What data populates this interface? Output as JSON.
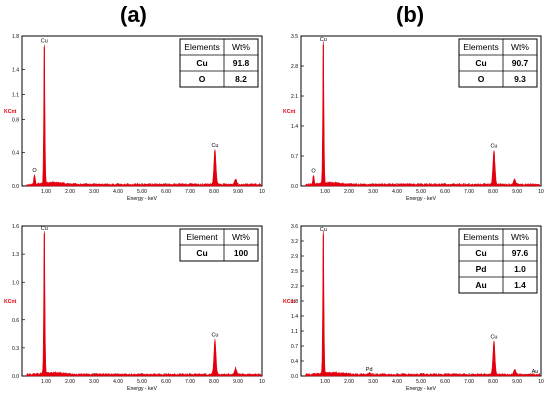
{
  "panel_letters": [
    "(a)",
    "(b)"
  ],
  "chart_data": [
    {
      "type": "line",
      "xlabel": "Energy - keV",
      "ylabel": "KCnt",
      "xlim": [
        0,
        10
      ],
      "ylim": [
        0,
        1.8
      ],
      "xticks": [
        "1.00",
        "2.00",
        "3.00",
        "4.00",
        "5.00",
        "6.00",
        "7.00",
        "8.00",
        "9.00",
        "10"
      ],
      "yticks": [
        "0.0",
        "0.4",
        "0.8",
        "1.1",
        "1.4",
        "1.8"
      ],
      "ytick_values": [
        0.0,
        0.4,
        0.8,
        1.1,
        1.4,
        1.8
      ],
      "peaks": [
        {
          "x": 0.52,
          "y": 0.12,
          "w": 0.04
        },
        {
          "x": 0.93,
          "y": 1.67,
          "w": 0.035
        },
        {
          "x": 8.04,
          "y": 0.42,
          "w": 0.06
        },
        {
          "x": 8.9,
          "y": 0.07,
          "w": 0.06
        }
      ],
      "annotations": [
        {
          "text": "Cu",
          "x": 0.93,
          "y": 1.72
        },
        {
          "text": "O",
          "x": 0.52,
          "y": 0.17
        },
        {
          "text": "Cu",
          "x": 8.04,
          "y": 0.47
        }
      ],
      "table": {
        "headers": [
          "Elements",
          "Wt%"
        ],
        "rows": [
          [
            "Cu",
            "91.8"
          ],
          [
            "O",
            "8.2"
          ]
        ]
      }
    },
    {
      "type": "line",
      "xlabel": "Energy - keV",
      "ylabel": "KCnt",
      "xlim": [
        0,
        10
      ],
      "ylim": [
        0,
        3.5
      ],
      "xticks": [
        "1.00",
        "2.00",
        "3.00",
        "4.00",
        "5.00",
        "6.00",
        "7.00",
        "8.00",
        "9.00",
        "10"
      ],
      "yticks": [
        "0.0",
        "0.7",
        "1.4",
        "2.1",
        "2.8",
        "3.5"
      ],
      "ytick_values": [
        0.0,
        0.7,
        1.4,
        2.1,
        2.8,
        3.5
      ],
      "peaks": [
        {
          "x": 0.52,
          "y": 0.22,
          "w": 0.04
        },
        {
          "x": 0.93,
          "y": 3.3,
          "w": 0.035
        },
        {
          "x": 8.04,
          "y": 0.8,
          "w": 0.06
        },
        {
          "x": 8.9,
          "y": 0.13,
          "w": 0.06
        }
      ],
      "annotations": [
        {
          "text": "Cu",
          "x": 0.93,
          "y": 3.38
        },
        {
          "text": "O",
          "x": 0.52,
          "y": 0.32
        },
        {
          "text": "Cu",
          "x": 8.04,
          "y": 0.9
        }
      ],
      "table": {
        "headers": [
          "Elements",
          "Wt%"
        ],
        "rows": [
          [
            "Cu",
            "90.7"
          ],
          [
            "O",
            "9.3"
          ]
        ]
      }
    },
    {
      "type": "line",
      "xlabel": "Energy - keV",
      "ylabel": "KCnt",
      "xlim": [
        0,
        10
      ],
      "ylim": [
        0,
        1.6
      ],
      "xticks": [
        "1.00",
        "2.00",
        "3.00",
        "4.00",
        "5.00",
        "6.00",
        "7.00",
        "8.00",
        "9.00",
        "10"
      ],
      "yticks": [
        "0.0",
        "0.3",
        "0.6",
        "1.0",
        "1.3",
        "1.6"
      ],
      "ytick_values": [
        0.0,
        0.3,
        0.6,
        1.0,
        1.3,
        1.6
      ],
      "peaks": [
        {
          "x": 0.93,
          "y": 1.52,
          "w": 0.035
        },
        {
          "x": 8.04,
          "y": 0.37,
          "w": 0.06
        },
        {
          "x": 8.9,
          "y": 0.07,
          "w": 0.06
        }
      ],
      "annotations": [
        {
          "text": "Cu",
          "x": 0.93,
          "y": 1.56
        },
        {
          "text": "Cu",
          "x": 8.04,
          "y": 0.42
        }
      ],
      "table": {
        "headers": [
          "Element",
          "Wt%"
        ],
        "rows": [
          [
            "Cu",
            "100"
          ]
        ]
      }
    },
    {
      "type": "line",
      "xlabel": "Energy - keV",
      "ylabel": "KCnt",
      "xlim": [
        0,
        10
      ],
      "ylim": [
        0,
        3.6
      ],
      "xticks": [
        "1.00",
        "2.00",
        "3.00",
        "4.00",
        "5.00",
        "6.00",
        "7.00",
        "8.00",
        "9.00",
        "10"
      ],
      "yticks": [
        "0.0",
        "0.4",
        "0.7",
        "1.1",
        "1.4",
        "1.8",
        "2.2",
        "2.5",
        "2.9",
        "3.2",
        "3.6"
      ],
      "ytick_values": [
        0.0,
        0.36,
        0.72,
        1.08,
        1.44,
        1.8,
        2.16,
        2.52,
        2.88,
        3.24,
        3.6
      ],
      "peaks": [
        {
          "x": 0.93,
          "y": 3.4,
          "w": 0.035
        },
        {
          "x": 2.84,
          "y": 0.03,
          "w": 0.06
        },
        {
          "x": 8.04,
          "y": 0.8,
          "w": 0.06
        },
        {
          "x": 8.9,
          "y": 0.12,
          "w": 0.06
        }
      ],
      "annotations": [
        {
          "text": "Cu",
          "x": 0.93,
          "y": 3.48
        },
        {
          "text": "Pd",
          "x": 2.84,
          "y": 0.12
        },
        {
          "text": "Cu",
          "x": 8.04,
          "y": 0.9
        },
        {
          "text": "Au",
          "x": 9.75,
          "y": 0.07
        }
      ],
      "table": {
        "headers": [
          "Elements",
          "Wt%"
        ],
        "rows": [
          [
            "Cu",
            "97.6"
          ],
          [
            "Pd",
            "1.0"
          ],
          [
            "Au",
            "1.4"
          ]
        ]
      }
    }
  ]
}
